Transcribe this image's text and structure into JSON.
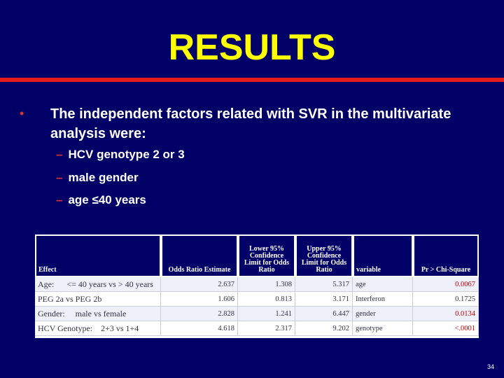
{
  "title": "RESULTS",
  "colors": {
    "background": "#000066",
    "title": "#ffff00",
    "rule": "#e51c1c",
    "bullet": "#e03030"
  },
  "bullet": "The independent factors related with  SVR in the multivariate analysis were:",
  "sub_items": [
    "HCV genotype 2 or 3",
    "male gender",
    "age ≤40 years"
  ],
  "table": {
    "headers": [
      "Effect",
      "Odds Ratio Estimate",
      "Lower 95% Confidence Limit for Odds Ratio",
      "Upper 95% Confidence Limit for Odds Ratio",
      "variable",
      "Pr > Chi-Square"
    ],
    "rows": [
      [
        "Age:      <= 40 years vs > 40 years",
        "2.637",
        "1.308",
        "5.317",
        "age",
        "0.0067"
      ],
      [
        "PEG 2a vs PEG 2b",
        "1.606",
        "0.813",
        "3.171",
        "Interferon",
        "0.1725"
      ],
      [
        "Gender:     male vs female",
        "2.828",
        "1.241",
        "6.447",
        "gender",
        "0.0134"
      ],
      [
        "HCV Genotype:    2+3 vs 1+4",
        "4.618",
        "2.317",
        "9.202",
        "genotype",
        "<.0001"
      ]
    ]
  },
  "page_number": "34"
}
